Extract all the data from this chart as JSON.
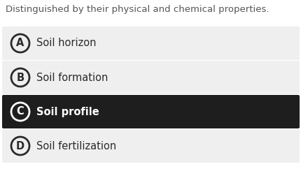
{
  "question": "Distinguished by their physical and chemical properties.",
  "options": [
    {
      "letter": "A",
      "text": "Soil horizon",
      "selected": false
    },
    {
      "letter": "B",
      "text": "Soil formation",
      "selected": false
    },
    {
      "letter": "C",
      "text": "Soil profile",
      "selected": true
    },
    {
      "letter": "D",
      "text": "Soil fertilization",
      "selected": false
    }
  ],
  "bg_color": "#ffffff",
  "option_bg_normal": "#efefef",
  "option_bg_selected": "#1e1e1e",
  "option_text_normal": "#2a2a2a",
  "option_text_selected": "#ffffff",
  "circle_edge_normal": "#2a2a2a",
  "circle_edge_selected": "#ffffff",
  "question_color": "#555555",
  "question_fontsize": 9.5,
  "option_fontsize": 10.5,
  "letter_fontsize": 10.5,
  "fig_width": 4.31,
  "fig_height": 2.65,
  "dpi": 100
}
